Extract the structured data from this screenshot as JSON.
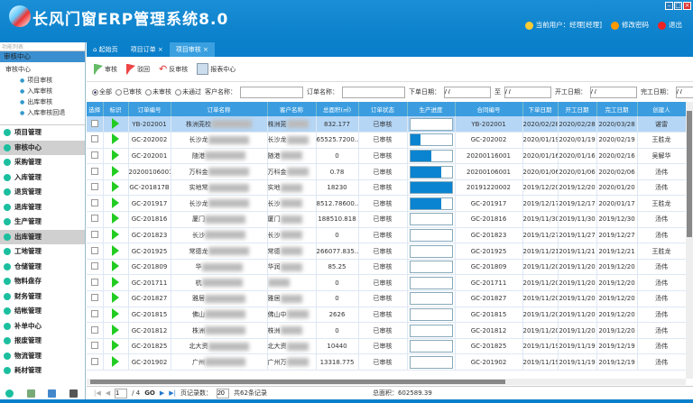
{
  "app": {
    "title": "长风门窗ERP管理系统8.0",
    "user": "当前用户：经理[经理]",
    "change_password": "修改密码",
    "logout": "退出",
    "colors": {
      "header": "#0a7fca",
      "accent": "#3b9de0",
      "progress": "#0a84d0",
      "indicator": "#22cc22"
    }
  },
  "sidebar": {
    "search_placeholder": "功能列表",
    "section": "审核中心",
    "tree": {
      "root": "审核中心",
      "items": [
        "项目审核",
        "入库审核",
        "出库审核",
        "入库审核回退"
      ]
    },
    "nav": [
      "项目管理",
      "审核中心",
      "采购管理",
      "入库管理",
      "退货管理",
      "退库管理",
      "生产管理",
      "出库管理",
      "工地管理",
      "仓储管理",
      "物料盘存",
      "财务管理",
      "结帐管理",
      "补单中心",
      "报废管理",
      "物流管理",
      "耗材管理"
    ],
    "selected": [
      "审核中心",
      "出库管理"
    ]
  },
  "tabs": [
    {
      "label": "起始页",
      "closable": false
    },
    {
      "label": "项目订单",
      "closable": true
    },
    {
      "label": "项目审核",
      "closable": true,
      "active": true
    }
  ],
  "toolbar": {
    "approve": "审核",
    "reject": "驳回",
    "unapprove": "反审核",
    "report": "报表中心"
  },
  "filter": {
    "radios": [
      "全部",
      "已审核",
      "未审核",
      "未通过"
    ],
    "selected": "全部",
    "customer_label": "客户名称：",
    "order_label": "订单名称：",
    "order_date_label": "下单日期：",
    "to": "至",
    "start_date_label": "开工日期：",
    "finish_date_label": "完工日期：",
    "date_placeholder": "/ /"
  },
  "grid": {
    "columns": [
      "选择",
      "标识",
      "订单编号",
      "订单名称",
      "客户名称",
      "总面积(㎡)",
      "订单状态",
      "生产进度",
      "合同编号",
      "下单日期",
      "开工日期",
      "完工日期",
      "创建人"
    ],
    "rows": [
      [
        "YB-202001",
        "株洲莞校",
        "株洲莞",
        "832.177",
        "已审核",
        0,
        "YB-202001",
        "2020/02/28",
        "2020/02/28",
        "2020/03/28",
        "谌雷"
      ],
      [
        "GC-202002",
        "长沙龙",
        "长沙龙",
        "65525.7200...",
        "已审核",
        0.25,
        "GC-202002",
        "2020/01/19",
        "2020/01/19",
        "2020/02/19",
        "王胜龙"
      ],
      [
        "GC-202001",
        "随港",
        "随港",
        "0",
        "已审核",
        0.5,
        "20200116001",
        "2020/01/16",
        "2020/01/16",
        "2020/02/16",
        "吴解华"
      ],
      [
        "20200106001",
        "万科金",
        "万科金",
        "0.78",
        "已审核",
        0.75,
        "20200106001",
        "2020/01/06",
        "2020/01/06",
        "2020/02/06",
        "汤伟"
      ],
      [
        "GC-201817B",
        "实地常",
        "实地",
        "18230",
        "已审核",
        1,
        "20191220002",
        "2019/12/20",
        "2019/12/20",
        "2020/01/20",
        "汤伟"
      ],
      [
        "GC-201917",
        "长沙龙",
        "长沙",
        "8512.78600...",
        "已审核",
        0.75,
        "GC-201917",
        "2019/12/17",
        "2019/12/17",
        "2020/01/17",
        "王胜龙"
      ],
      [
        "GC-201816",
        "厦门",
        "厦门",
        "188510.818",
        "已审核",
        0,
        "GC-201816",
        "2019/11/30",
        "2019/11/30",
        "2019/12/30",
        "汤伟"
      ],
      [
        "GC-201823",
        "长沙",
        "长沙",
        "0",
        "已审核",
        0,
        "GC-201823",
        "2019/11/27",
        "2019/11/27",
        "2019/12/27",
        "汤伟"
      ],
      [
        "GC-201925",
        "常德龙",
        "常德",
        "266077.835...",
        "已审核",
        0,
        "GC-201925",
        "2019/11/21",
        "2019/11/21",
        "2019/12/21",
        "王胜龙"
      ],
      [
        "GC-201809",
        "华",
        "华润",
        "85.25",
        "已审核",
        0,
        "GC-201809",
        "2019/11/20",
        "2019/11/20",
        "2019/12/20",
        "汤伟"
      ],
      [
        "GC-201711",
        "杭",
        "",
        "0",
        "已审核",
        0,
        "GC-201711",
        "2019/11/20",
        "2019/11/20",
        "2019/12/20",
        "汤伟"
      ],
      [
        "GC-201827",
        "雅居",
        "雅居",
        "0",
        "已审核",
        0,
        "GC-201827",
        "2019/11/20",
        "2019/11/20",
        "2019/12/20",
        "汤伟"
      ],
      [
        "GC-201815",
        "佛山",
        "佛山中",
        "2626",
        "已审核",
        0,
        "GC-201815",
        "2019/11/20",
        "2019/11/20",
        "2019/12/20",
        "汤伟"
      ],
      [
        "GC-201812",
        "株洲",
        "株洲",
        "0",
        "已审核",
        0,
        "GC-201812",
        "2019/11/20",
        "2019/11/20",
        "2019/12/20",
        "汤伟"
      ],
      [
        "GC-201825",
        "北大资",
        "北大资",
        "10440",
        "已审核",
        0,
        "GC-201825",
        "2019/11/19",
        "2019/11/19",
        "2019/12/19",
        "汤伟"
      ],
      [
        "GC-201902",
        "广州",
        "广州万",
        "13318.775",
        "已审核",
        0,
        "GC-201902",
        "2019/11/19",
        "2019/11/19",
        "2019/12/19",
        "汤伟"
      ]
    ]
  },
  "pager": {
    "page": "1",
    "of": "/ 4",
    "go": "GO",
    "page_size_label": "页记录数：",
    "page_size": "20",
    "total": "共62条记录",
    "total_area": "总面积：602589.39"
  }
}
